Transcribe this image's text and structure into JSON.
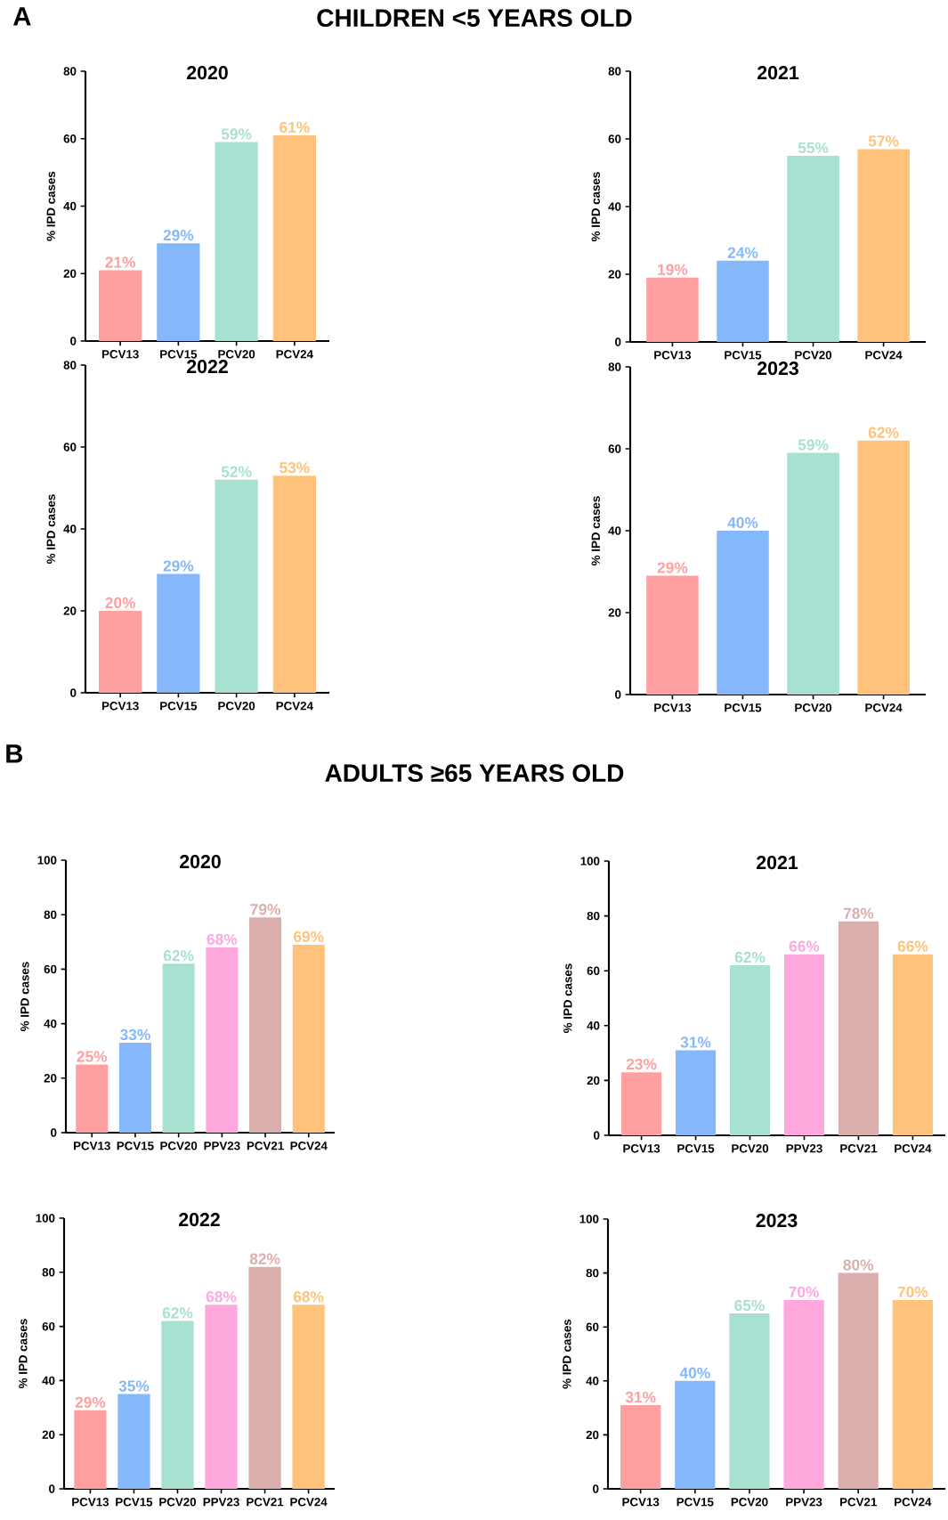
{
  "chart_data": [
    {
      "type": "bar",
      "title": "2020",
      "ylabel": "% IPD cases",
      "categories": [
        "PCV13",
        "PCV15",
        "PCV20",
        "PCV24"
      ],
      "values": [
        21,
        29,
        59,
        61
      ],
      "value_labels": [
        "21%",
        "29%",
        "59%",
        "61%"
      ],
      "colors": [
        "#ff9f9f",
        "#85b8fa",
        "#a8e0d2",
        "#ffc27a"
      ],
      "ylim": [
        0,
        80
      ],
      "yticks": [
        0,
        20,
        40,
        60,
        80
      ],
      "annotations": [
        "A",
        "CHILDREN <5 YEARS OLD"
      ]
    },
    {
      "type": "bar",
      "title": "2021",
      "ylabel": "% IPD cases",
      "categories": [
        "PCV13",
        "PCV15",
        "PCV20",
        "PCV24"
      ],
      "values": [
        19,
        24,
        55,
        57
      ],
      "value_labels": [
        "19%",
        "24%",
        "55%",
        "57%"
      ],
      "colors": [
        "#ff9f9f",
        "#85b8fa",
        "#a8e0d2",
        "#ffc27a"
      ],
      "ylim": [
        0,
        80
      ],
      "yticks": [
        0,
        20,
        40,
        60,
        80
      ]
    },
    {
      "type": "bar",
      "title": "2022",
      "ylabel": "% IPD cases",
      "categories": [
        "PCV13",
        "PCV15",
        "PCV20",
        "PCV24"
      ],
      "values": [
        20,
        29,
        52,
        53
      ],
      "value_labels": [
        "20%",
        "29%",
        "52%",
        "53%"
      ],
      "colors": [
        "#ff9f9f",
        "#85b8fa",
        "#a8e0d2",
        "#ffc27a"
      ],
      "ylim": [
        0,
        80
      ],
      "yticks": [
        0,
        20,
        40,
        60,
        80
      ]
    },
    {
      "type": "bar",
      "title": "2023",
      "ylabel": "% IPD cases",
      "categories": [
        "PCV13",
        "PCV15",
        "PCV20",
        "PCV24"
      ],
      "values": [
        29,
        40,
        59,
        62
      ],
      "value_labels": [
        "29%",
        "40%",
        "59%",
        "62%"
      ],
      "colors": [
        "#ff9f9f",
        "#85b8fa",
        "#a8e0d2",
        "#ffc27a"
      ],
      "ylim": [
        0,
        80
      ],
      "yticks": [
        0,
        20,
        40,
        60,
        80
      ]
    },
    {
      "type": "bar",
      "title": "2020",
      "ylabel": "% IPD cases",
      "categories": [
        "PCV13",
        "PCV15",
        "PCV20",
        "PPV23",
        "PCV21",
        "PCV24"
      ],
      "values": [
        25,
        33,
        62,
        68,
        79,
        69
      ],
      "value_labels": [
        "25%",
        "33%",
        "62%",
        "68%",
        "79%",
        "69%"
      ],
      "colors": [
        "#ff9f9f",
        "#85b8fa",
        "#a8e0d2",
        "#ffa8de",
        "#dbaeae",
        "#ffc27a"
      ],
      "ylim": [
        0,
        100
      ],
      "yticks": [
        0,
        20,
        40,
        60,
        80,
        100
      ],
      "annotations": [
        "B",
        "ADULTS ≥65 YEARS OLD"
      ]
    },
    {
      "type": "bar",
      "title": "2021",
      "ylabel": "% IPD cases",
      "categories": [
        "PCV13",
        "PCV15",
        "PCV20",
        "PPV23",
        "PCV21",
        "PCV24"
      ],
      "values": [
        23,
        31,
        62,
        66,
        78,
        66
      ],
      "value_labels": [
        "23%",
        "31%",
        "62%",
        "66%",
        "78%",
        "66%"
      ],
      "colors": [
        "#ff9f9f",
        "#85b8fa",
        "#a8e0d2",
        "#ffa8de",
        "#dbaeae",
        "#ffc27a"
      ],
      "ylim": [
        0,
        100
      ],
      "yticks": [
        0,
        20,
        40,
        60,
        80,
        100
      ]
    },
    {
      "type": "bar",
      "title": "2022",
      "ylabel": "% IPD cases",
      "categories": [
        "PCV13",
        "PCV15",
        "PCV20",
        "PPV23",
        "PCV21",
        "PCV24"
      ],
      "values": [
        29,
        35,
        62,
        68,
        82,
        68
      ],
      "value_labels": [
        "29%",
        "35%",
        "62%",
        "68%",
        "82%",
        "68%"
      ],
      "colors": [
        "#ff9f9f",
        "#85b8fa",
        "#a8e0d2",
        "#ffa8de",
        "#dbaeae",
        "#ffc27a"
      ],
      "ylim": [
        0,
        100
      ],
      "yticks": [
        0,
        20,
        40,
        60,
        80,
        100
      ]
    },
    {
      "type": "bar",
      "title": "2023",
      "ylabel": "% IPD cases",
      "categories": [
        "PCV13",
        "PCV15",
        "PCV20",
        "PPV23",
        "PCV21",
        "PCV24"
      ],
      "values": [
        31,
        40,
        65,
        70,
        80,
        70
      ],
      "value_labels": [
        "31%",
        "40%",
        "65%",
        "70%",
        "80%",
        "70%"
      ],
      "colors": [
        "#ff9f9f",
        "#85b8fa",
        "#a8e0d2",
        "#ffa8de",
        "#dbaeae",
        "#ffc27a"
      ],
      "ylim": [
        0,
        100
      ],
      "yticks": [
        0,
        20,
        40,
        60,
        80,
        100
      ]
    }
  ]
}
